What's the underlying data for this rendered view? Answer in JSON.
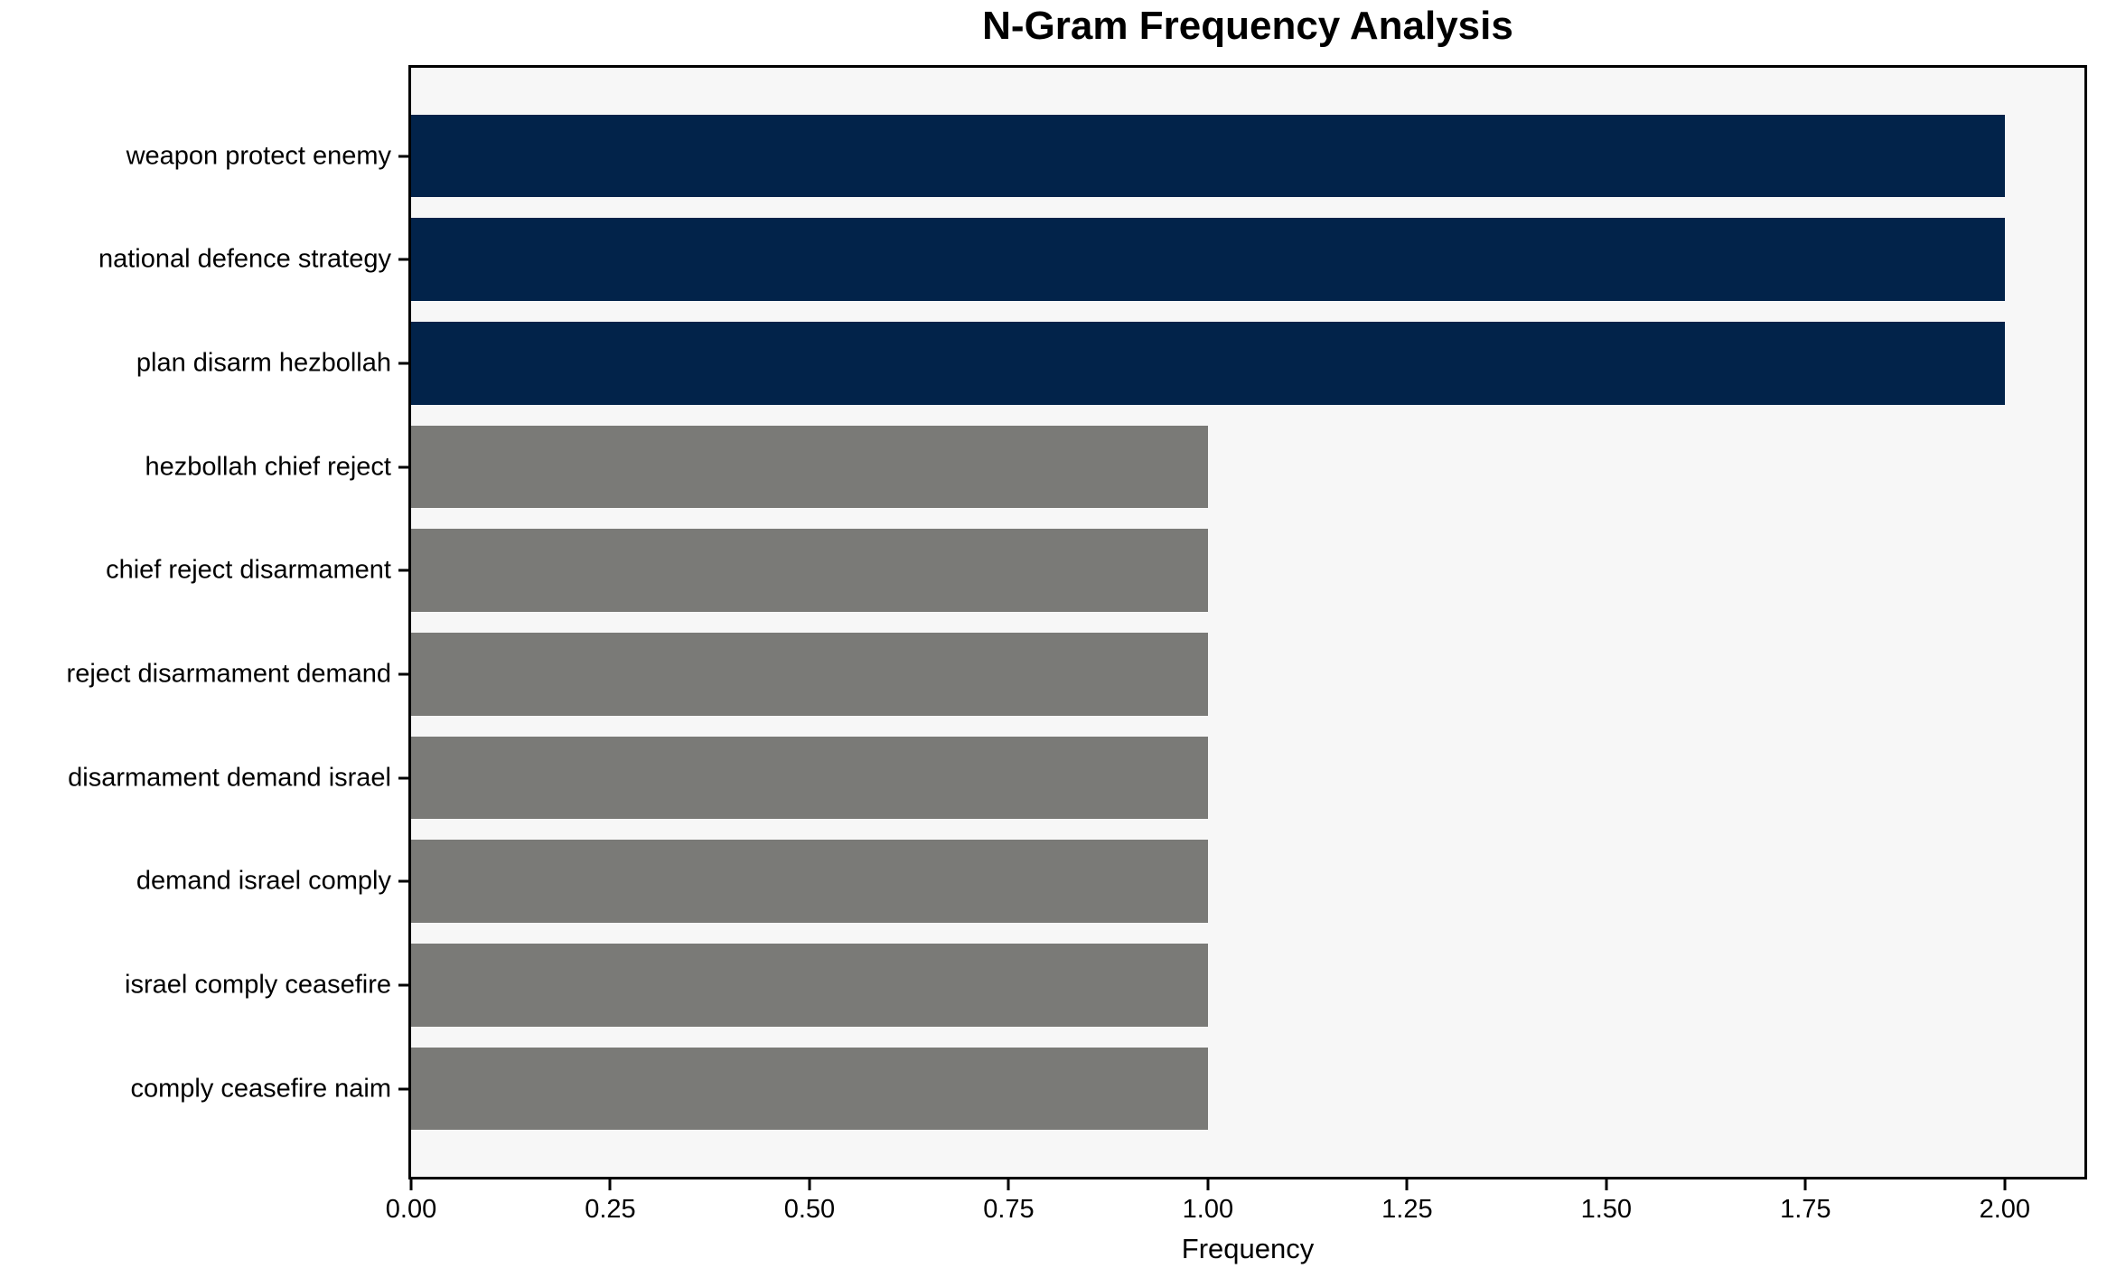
{
  "chart_data": {
    "type": "bar",
    "orientation": "horizontal",
    "title": "N-Gram Frequency Analysis",
    "xlabel": "Frequency",
    "ylabel": "",
    "categories": [
      "weapon protect enemy",
      "national defence strategy",
      "plan disarm hezbollah",
      "hezbollah chief reject",
      "chief reject disarmament",
      "reject disarmament demand",
      "disarmament demand israel",
      "demand israel comply",
      "israel comply ceasefire",
      "comply ceasefire naim"
    ],
    "values": [
      2,
      2,
      2,
      1,
      1,
      1,
      1,
      1,
      1,
      1
    ],
    "xlim": [
      0,
      2.1
    ],
    "xticks": [
      {
        "value": 0.0,
        "label": "0.00"
      },
      {
        "value": 0.25,
        "label": "0.25"
      },
      {
        "value": 0.5,
        "label": "0.50"
      },
      {
        "value": 0.75,
        "label": "0.75"
      },
      {
        "value": 1.0,
        "label": "1.00"
      },
      {
        "value": 1.25,
        "label": "1.25"
      },
      {
        "value": 1.5,
        "label": "1.50"
      },
      {
        "value": 1.75,
        "label": "1.75"
      },
      {
        "value": 2.0,
        "label": "2.00"
      }
    ],
    "grid": false,
    "legend": null,
    "colors": {
      "high_value_bar": "#02234a",
      "low_value_bar": "#7a7a77",
      "plot_background": "#f7f7f7",
      "figure_background": "#ffffff",
      "spine": "#000000",
      "text": "#000000"
    },
    "color_rule": "bars with value 2 use high_value_bar, bars with value 1 use low_value_bar"
  }
}
